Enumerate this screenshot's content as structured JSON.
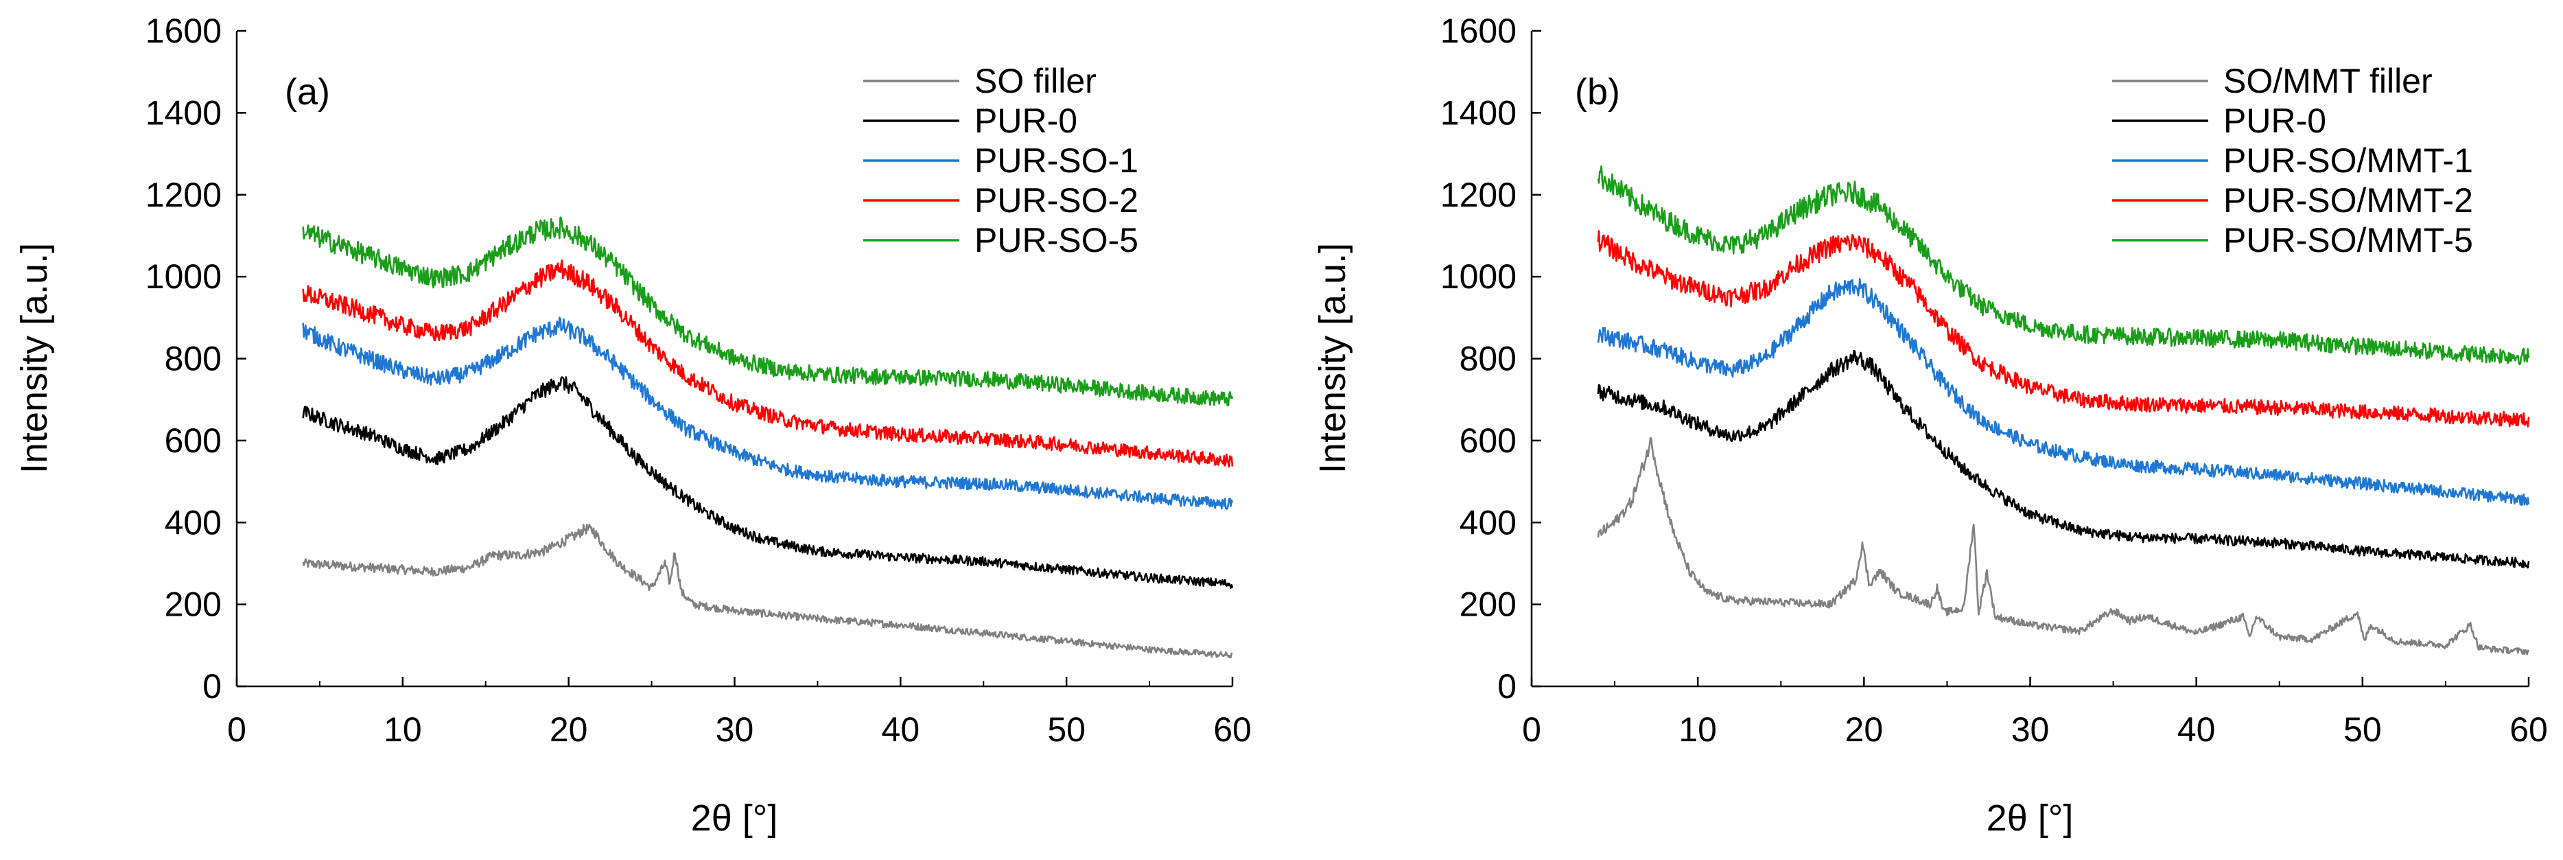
{
  "chart_data": [
    {
      "type": "line",
      "panel_label": "(a)",
      "xlabel": "2θ [°]",
      "ylabel": "Intensity [a.u.]",
      "xlim": [
        0,
        60
      ],
      "ylim": [
        0,
        1600
      ],
      "xticks": [
        0,
        10,
        20,
        30,
        40,
        50,
        60
      ],
      "yticks": [
        0,
        200,
        400,
        600,
        800,
        1000,
        1200,
        1400,
        1600
      ],
      "legend_position": "top-right",
      "series": [
        {
          "name": "SO filler",
          "color": "#808080",
          "x": [
            4,
            6,
            8,
            10,
            12,
            14,
            15.5,
            17,
            18.5,
            19.5,
            20.5,
            21,
            21.5,
            22,
            23,
            24,
            25,
            25.8,
            26.1,
            26.4,
            26.8,
            27.5,
            30,
            35,
            40,
            45,
            50,
            55,
            60
          ],
          "y": [
            300,
            295,
            290,
            285,
            280,
            290,
            320,
            320,
            330,
            350,
            370,
            385,
            380,
            350,
            300,
            270,
            240,
            300,
            250,
            330,
            230,
            200,
            185,
            165,
            150,
            130,
            110,
            90,
            75
          ]
        },
        {
          "name": "PUR-0",
          "color": "#000000",
          "x": [
            4,
            6,
            8,
            10,
            12,
            14,
            16,
            18,
            19.5,
            20.5,
            22,
            24,
            26,
            28,
            30,
            32,
            35,
            40,
            45,
            50,
            55,
            60
          ],
          "y": [
            670,
            640,
            615,
            580,
            555,
            580,
            640,
            710,
            745,
            720,
            650,
            560,
            490,
            430,
            385,
            355,
            330,
            315,
            305,
            285,
            265,
            250
          ]
        },
        {
          "name": "PUR-SO-1",
          "color": "#1f77d4",
          "x": [
            4,
            6,
            8,
            10,
            12,
            14,
            16,
            18,
            19.5,
            21,
            23,
            25,
            27,
            30,
            33,
            36,
            40,
            45,
            50,
            55,
            60
          ],
          "y": [
            870,
            830,
            800,
            770,
            750,
            765,
            810,
            860,
            880,
            850,
            780,
            700,
            630,
            570,
            530,
            510,
            500,
            495,
            480,
            460,
            445
          ]
        },
        {
          "name": "PUR-SO-2",
          "color": "#ff0000",
          "x": [
            4,
            6,
            8,
            10,
            12,
            14,
            16,
            18,
            19.5,
            21,
            23,
            25,
            27,
            30,
            33,
            36,
            40,
            45,
            50,
            55,
            60
          ],
          "y": [
            960,
            935,
            910,
            880,
            860,
            875,
            930,
            990,
            1020,
            990,
            920,
            830,
            760,
            690,
            650,
            630,
            615,
            605,
            590,
            570,
            550
          ]
        },
        {
          "name": "PUR-SO-5",
          "color": "#1a9e1a",
          "x": [
            4,
            6,
            8,
            10,
            12,
            14,
            16,
            18,
            19.5,
            21,
            23,
            25,
            27,
            30,
            33,
            36,
            40,
            45,
            50,
            55,
            60
          ],
          "y": [
            1110,
            1080,
            1050,
            1020,
            995,
            1010,
            1065,
            1110,
            1120,
            1090,
            1020,
            930,
            860,
            800,
            770,
            760,
            755,
            750,
            735,
            715,
            700
          ]
        }
      ]
    },
    {
      "type": "line",
      "panel_label": "(b)",
      "xlabel": "2θ [°]",
      "ylabel": "Intensity [a.u.]",
      "xlim": [
        0,
        60
      ],
      "ylim": [
        0,
        1600
      ],
      "xticks": [
        0,
        10,
        20,
        30,
        40,
        50,
        60
      ],
      "yticks": [
        0,
        200,
        400,
        600,
        800,
        1000,
        1200,
        1400,
        1600
      ],
      "legend_position": "top-right",
      "series": [
        {
          "name": "SO/MMT filler",
          "color": "#808080",
          "x": [
            4,
            5,
            6,
            6.8,
            7.2,
            7.6,
            8.5,
            9.5,
            10.5,
            12,
            15,
            18,
            19.5,
            19.9,
            20.3,
            21,
            22,
            24,
            24.4,
            24.8,
            26,
            26.6,
            26.9,
            27.4,
            27.9,
            28.5,
            30,
            33,
            35,
            36,
            37,
            40,
            42.8,
            43.2,
            43.6,
            45,
            47,
            49.7,
            50.1,
            50.5,
            52,
            55,
            56.5,
            57,
            58,
            60
          ],
          "y": [
            370,
            400,
            450,
            550,
            600,
            520,
            380,
            280,
            230,
            210,
            205,
            200,
            260,
            350,
            250,
            280,
            230,
            200,
            240,
            180,
            190,
            400,
            180,
            280,
            170,
            165,
            150,
            135,
            185,
            160,
            170,
            130,
            170,
            120,
            170,
            120,
            115,
            180,
            110,
            150,
            110,
            100,
            150,
            95,
            90,
            85
          ]
        },
        {
          "name": "PUR-0",
          "color": "#000000",
          "x": [
            4,
            6,
            8,
            10,
            12,
            14,
            16,
            18,
            19.5,
            20.5,
            22,
            24,
            26,
            28,
            30,
            33,
            36,
            40,
            45,
            50,
            55,
            60
          ],
          "y": [
            720,
            700,
            680,
            640,
            610,
            630,
            700,
            770,
            805,
            780,
            700,
            610,
            530,
            470,
            420,
            380,
            365,
            360,
            350,
            330,
            315,
            300
          ]
        },
        {
          "name": "PUR-SO/MMT-1",
          "color": "#1f77d4",
          "x": [
            4,
            6,
            8,
            10,
            12,
            14,
            16,
            18,
            19.5,
            21,
            23,
            25,
            27,
            30,
            33,
            36,
            40,
            45,
            50,
            55,
            60
          ],
          "y": [
            860,
            840,
            820,
            790,
            770,
            800,
            880,
            960,
            980,
            930,
            830,
            730,
            650,
            590,
            560,
            540,
            530,
            515,
            495,
            475,
            455
          ]
        },
        {
          "name": "PUR-SO/MMT-2",
          "color": "#ff0000",
          "x": [
            4,
            6,
            8,
            10,
            12,
            14,
            16,
            18,
            19.5,
            21,
            23,
            25,
            27,
            30,
            33,
            36,
            40,
            45,
            50,
            55,
            60
          ],
          "y": [
            1090,
            1040,
            1000,
            970,
            950,
            970,
            1030,
            1075,
            1085,
            1050,
            970,
            870,
            790,
            730,
            700,
            690,
            685,
            680,
            670,
            660,
            650
          ]
        },
        {
          "name": "PUR-SO/MMT-5",
          "color": "#1a9e1a",
          "x": [
            4,
            6,
            8,
            10,
            12,
            14,
            16,
            18,
            19.5,
            21,
            23,
            25,
            27,
            30,
            33,
            36,
            40,
            45,
            50,
            55,
            60
          ],
          "y": [
            1250,
            1190,
            1140,
            1100,
            1075,
            1100,
            1160,
            1200,
            1205,
            1170,
            1090,
            1000,
            930,
            880,
            860,
            855,
            850,
            845,
            830,
            815,
            805
          ]
        }
      ]
    }
  ]
}
